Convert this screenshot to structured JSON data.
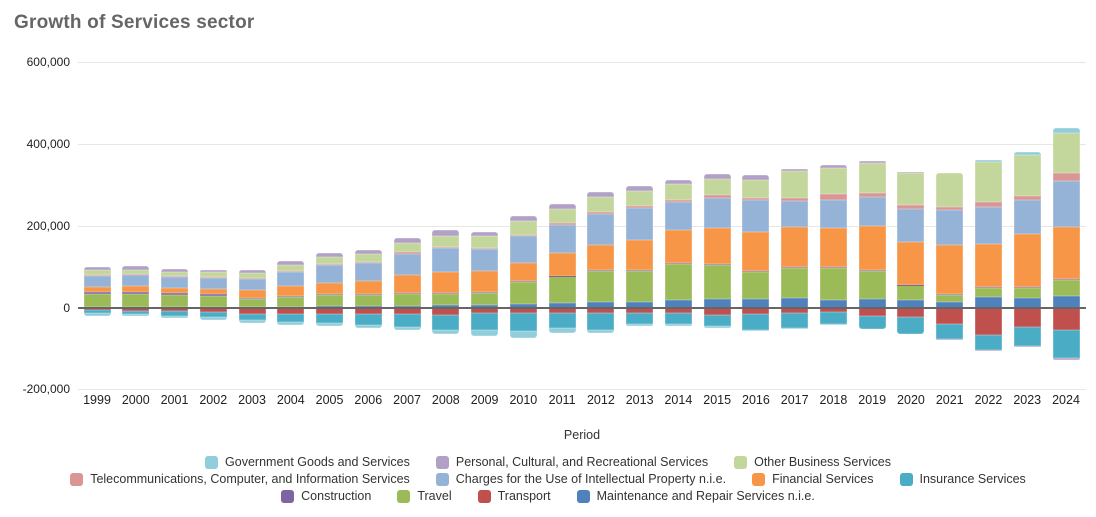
{
  "title": "Growth of Services sector",
  "x_axis_title": "Period",
  "y_axis": {
    "ticks": [
      "600,000",
      "400,000",
      "200,000",
      "0",
      "-200,000"
    ],
    "tick_values": [
      600000,
      400000,
      200000,
      0,
      -200000
    ]
  },
  "colors": {
    "grid": "#e6e6e6",
    "zero_line": "#666666",
    "title_text": "#666666",
    "axis_text": "#222222"
  },
  "chart_data": {
    "type": "bar",
    "stacked": true,
    "title": "Growth of Services sector",
    "xlabel": "Period",
    "ylabel": "",
    "ylim": [
      -200000,
      600000
    ],
    "grid": "horizontal",
    "legend_position": "bottom",
    "x": [
      1999,
      2000,
      2001,
      2002,
      2003,
      2004,
      2005,
      2006,
      2007,
      2008,
      2009,
      2010,
      2011,
      2012,
      2013,
      2014,
      2015,
      2016,
      2017,
      2018,
      2019,
      2020,
      2021,
      2022,
      2023,
      2024
    ],
    "stack_order": [
      "maintenance",
      "transport",
      "travel",
      "construction",
      "insurance",
      "financial",
      "charges",
      "telecom",
      "other_business",
      "personal",
      "government"
    ],
    "series": [
      {
        "key": "government",
        "name": "Government Goods and Services",
        "color": "#92cddc",
        "values": [
          -7000,
          -6000,
          -6000,
          -6000,
          -6000,
          -7000,
          -7000,
          -7000,
          -8000,
          -9000,
          -14000,
          -17000,
          -12000,
          -6000,
          -5000,
          -6000,
          -4000,
          -3000,
          -2000,
          -2000,
          0,
          0,
          0,
          5000,
          7000,
          10000
        ]
      },
      {
        "key": "personal",
        "name": "Personal, Cultural, and Recreational Services",
        "color": "#b2a1c7",
        "values": [
          7000,
          8000,
          7000,
          7000,
          8000,
          9000,
          10000,
          10000,
          12000,
          14000,
          12000,
          12000,
          12000,
          12000,
          12000,
          12000,
          12000,
          12000,
          6000,
          6000,
          5000,
          2000,
          -4000,
          -1000,
          -1000,
          -5000
        ]
      },
      {
        "key": "other_business",
        "name": "Other Business Services",
        "color": "#c3d69b",
        "values": [
          11000,
          12000,
          11000,
          11000,
          14000,
          15000,
          17000,
          19000,
          24000,
          28000,
          29000,
          33000,
          34000,
          37000,
          38000,
          37000,
          39000,
          45000,
          65000,
          64000,
          72000,
          78000,
          83000,
          98000,
          100000,
          98000
        ]
      },
      {
        "key": "telecom",
        "name": "Telecommunications, Computer, and Information Services",
        "color": "#d99694",
        "values": [
          2000,
          2000,
          2000,
          2000,
          2000,
          2000,
          2000,
          2000,
          3000,
          3000,
          3000,
          4000,
          4000,
          5000,
          5000,
          5000,
          8000,
          6000,
          8000,
          15000,
          11000,
          12000,
          8000,
          10000,
          10000,
          20000
        ]
      },
      {
        "key": "charges",
        "name": "Charges for the Use of Intellectual Property n.i.e.",
        "color": "#95b3d7",
        "values": [
          27000,
          27000,
          27000,
          28000,
          27000,
          35000,
          43000,
          44000,
          52000,
          58000,
          52000,
          64000,
          69000,
          76000,
          77000,
          70000,
          74000,
          77000,
          65000,
          69000,
          70000,
          80000,
          87000,
          92000,
          82000,
          112000
        ]
      },
      {
        "key": "financial",
        "name": "Financial Services",
        "color": "#f79646",
        "values": [
          13000,
          14000,
          13000,
          13000,
          19000,
          24000,
          28000,
          33000,
          44000,
          52000,
          52000,
          45000,
          56000,
          61000,
          74000,
          81000,
          88000,
          96000,
          97000,
          95000,
          109000,
          104000,
          120000,
          106000,
          131000,
          129000
        ]
      },
      {
        "key": "insurance",
        "name": "Insurance Services",
        "color": "#4bacc6",
        "values": [
          -6000,
          -7000,
          -11000,
          -14000,
          -15000,
          -20000,
          -22000,
          -26000,
          -32000,
          -38000,
          -43000,
          -44000,
          -37000,
          -43000,
          -28000,
          -27000,
          -27000,
          -39000,
          -37000,
          -28000,
          -31000,
          -41000,
          -35000,
          -37000,
          -48000,
          -69000
        ]
      },
      {
        "key": "construction",
        "name": "Construction",
        "color": "#8064a2",
        "values": [
          4000,
          4000,
          4000,
          4000,
          2000,
          2000,
          2000,
          2000,
          2000,
          3000,
          2000,
          2000,
          2000,
          2000,
          2000,
          2000,
          2000,
          2000,
          2000,
          2000,
          2000,
          2000,
          2000,
          2000,
          2000,
          2000
        ]
      },
      {
        "key": "travel",
        "name": "Travel",
        "color": "#9bbb59",
        "values": [
          33000,
          33000,
          30000,
          27000,
          20000,
          24000,
          28000,
          27000,
          30000,
          26000,
          29000,
          55000,
          65000,
          76000,
          76000,
          88000,
          84000,
          67000,
          74000,
          78000,
          68000,
          36000,
          16000,
          21000,
          25000,
          40000
        ]
      },
      {
        "key": "transport",
        "name": "Transport",
        "color": "#c0504d",
        "values": [
          -7000,
          -8000,
          -9000,
          -10000,
          -16000,
          -15000,
          -16000,
          -16000,
          -16000,
          -18000,
          -13000,
          -13000,
          -13000,
          -13000,
          -13000,
          -13000,
          -19000,
          -16000,
          -14000,
          -12000,
          -22000,
          -23000,
          -41000,
          -68000,
          -47000,
          -54000
        ]
      },
      {
        "key": "maintenance",
        "name": "Maintenance and Repair Services n.i.e.",
        "color": "#4f81bd",
        "values": [
          1000,
          1000,
          1000,
          1000,
          1000,
          2000,
          3000,
          3000,
          4000,
          6000,
          7000,
          8000,
          11000,
          13000,
          14000,
          18000,
          20000,
          20000,
          23000,
          19000,
          21000,
          18000,
          14000,
          26000,
          23000,
          27000
        ]
      }
    ]
  },
  "legend_rows": [
    [
      "government",
      "personal",
      "other_business"
    ],
    [
      "telecom",
      "charges",
      "financial",
      "insurance"
    ],
    [
      "construction",
      "travel",
      "transport",
      "maintenance"
    ]
  ]
}
